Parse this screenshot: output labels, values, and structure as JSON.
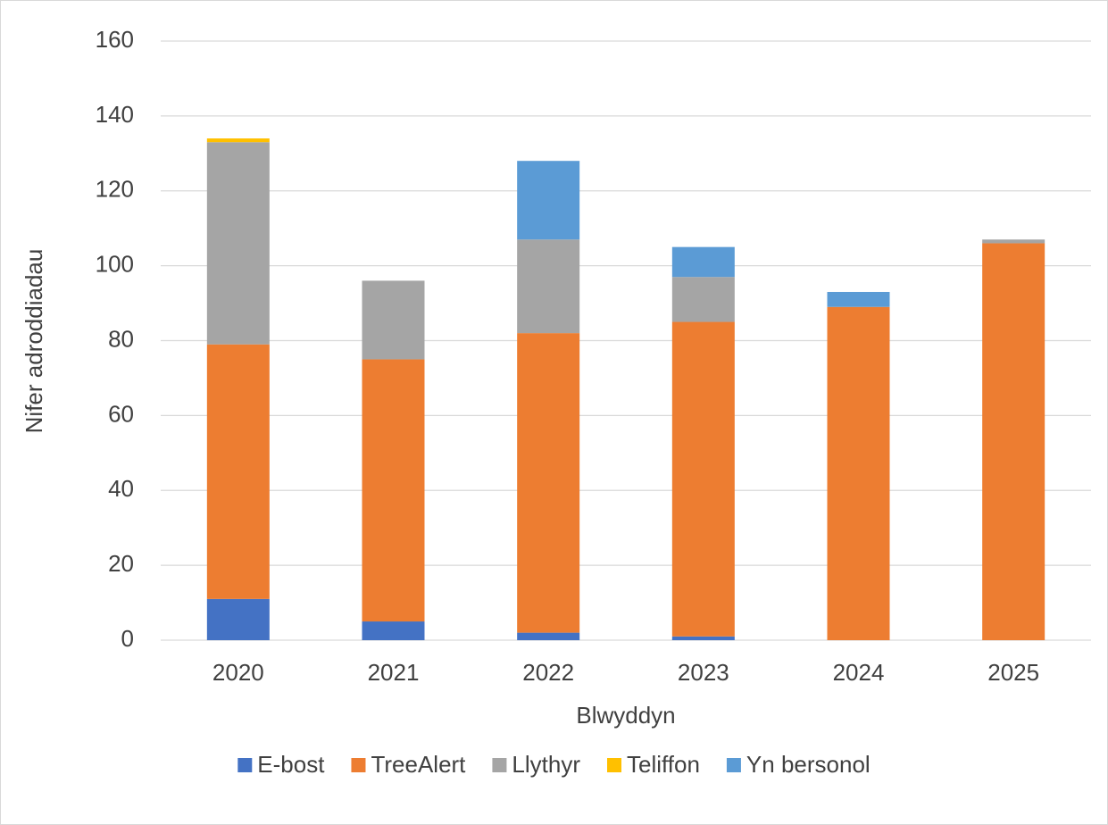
{
  "chart_data": {
    "type": "stacked_bar",
    "x_label": "Blwyddyn",
    "y_label": "Nifer adroddiadau",
    "categories": [
      "2020",
      "2021",
      "2022",
      "2023",
      "2024",
      "2025"
    ],
    "series": [
      {
        "name": "E-bost",
        "color": "#4472c4",
        "values": [
          11,
          5,
          2,
          1,
          0,
          0
        ]
      },
      {
        "name": "TreeAlert",
        "color": "#ed7d31",
        "values": [
          68,
          70,
          80,
          84,
          89,
          106
        ]
      },
      {
        "name": "Llythyr",
        "color": "#a5a5a5",
        "values": [
          54,
          21,
          25,
          12,
          0,
          1
        ]
      },
      {
        "name": "Teliffon",
        "color": "#ffc000",
        "values": [
          1,
          0,
          0,
          0,
          0,
          0
        ]
      },
      {
        "name": "Yn bersonol",
        "color": "#5b9bd5",
        "values": [
          0,
          0,
          21,
          8,
          4,
          0
        ]
      }
    ],
    "ylim": [
      0,
      160
    ],
    "yticks": [
      0,
      20,
      40,
      60,
      80,
      100,
      120,
      140,
      160
    ],
    "grid": true,
    "legend": "bottom"
  }
}
